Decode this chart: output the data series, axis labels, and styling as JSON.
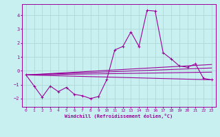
{
  "xlabel": "Windchill (Refroidissement éolien,°C)",
  "background_color": "#c8f0f0",
  "grid_color": "#b0d8d8",
  "line_color": "#990099",
  "ylim": [
    -2.6,
    4.8
  ],
  "xlim": [
    -0.5,
    23.5
  ],
  "yticks": [
    -2,
    -1,
    0,
    1,
    2,
    3,
    4
  ],
  "xticks": [
    0,
    1,
    2,
    3,
    4,
    5,
    6,
    7,
    8,
    9,
    10,
    11,
    12,
    13,
    14,
    15,
    16,
    17,
    18,
    19,
    20,
    21,
    22,
    23
  ],
  "series": [
    [
      0,
      -0.3
    ],
    [
      1,
      -1.1
    ],
    [
      2,
      -1.9
    ],
    [
      3,
      -1.1
    ],
    [
      4,
      -1.5
    ],
    [
      5,
      -1.2
    ],
    [
      6,
      -1.7
    ],
    [
      7,
      -1.8
    ],
    [
      8,
      -2.0
    ],
    [
      9,
      -1.85
    ],
    [
      10,
      -0.65
    ],
    [
      11,
      1.5
    ],
    [
      12,
      1.75
    ],
    [
      13,
      2.8
    ],
    [
      14,
      1.75
    ],
    [
      15,
      4.35
    ],
    [
      16,
      4.3
    ],
    [
      17,
      1.3
    ],
    [
      18,
      0.85
    ],
    [
      19,
      0.35
    ],
    [
      20,
      0.25
    ],
    [
      21,
      0.5
    ],
    [
      22,
      -0.55
    ],
    [
      23,
      -0.65
    ]
  ],
  "trend_lines": [
    [
      [
        0,
        -0.3
      ],
      [
        23,
        -0.65
      ]
    ],
    [
      [
        0,
        -0.3
      ],
      [
        23,
        -0.1
      ]
    ],
    [
      [
        0,
        -0.3
      ],
      [
        23,
        0.2
      ]
    ],
    [
      [
        0,
        -0.3
      ],
      [
        23,
        0.45
      ]
    ]
  ]
}
